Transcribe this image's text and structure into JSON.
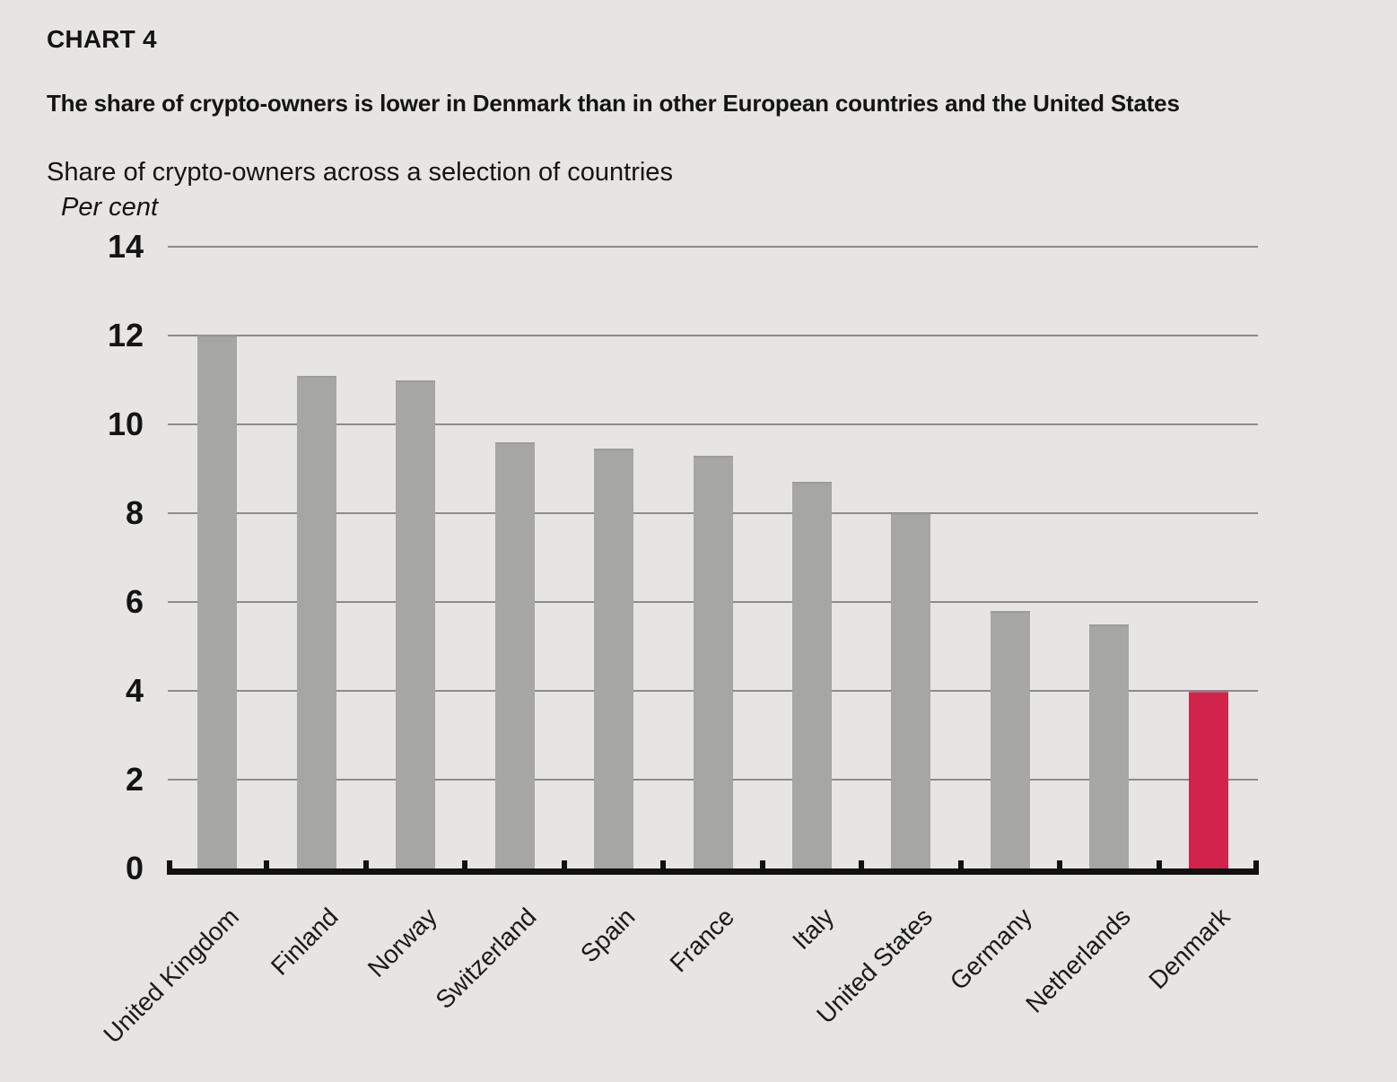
{
  "header": {
    "kicker": "CHART 4",
    "title": "The share of crypto-owners is lower in Denmark than in other European countries and the United States",
    "subtitle": "Share of crypto-owners across a selection of countries"
  },
  "chart_data": {
    "type": "bar",
    "title": "Share of crypto-owners across a selection of countries",
    "unit_label": "Per cent",
    "categories": [
      "United Kingdom",
      "Finland",
      "Norway",
      "Switzerland",
      "Spain",
      "France",
      "Italy",
      "United States",
      "Germany",
      "Netherlands",
      "Denmark"
    ],
    "values": [
      12,
      11.1,
      11,
      9.6,
      9.45,
      9.3,
      8.7,
      8,
      5.8,
      5.5,
      4
    ],
    "highlight_category": "Denmark",
    "highlight_index": 10,
    "xlabel": "",
    "ylabel": "Per cent",
    "ylim": [
      0,
      14
    ],
    "yticks": [
      0,
      2,
      4,
      6,
      8,
      10,
      12,
      14
    ],
    "grid": true,
    "legend": "none",
    "colors": {
      "bar": "#a6a6a3",
      "highlight": "#d2234d",
      "background": "#e6e5e3",
      "gridline": "#8c8c8c",
      "axis": "#111111",
      "text": "#141414"
    }
  }
}
